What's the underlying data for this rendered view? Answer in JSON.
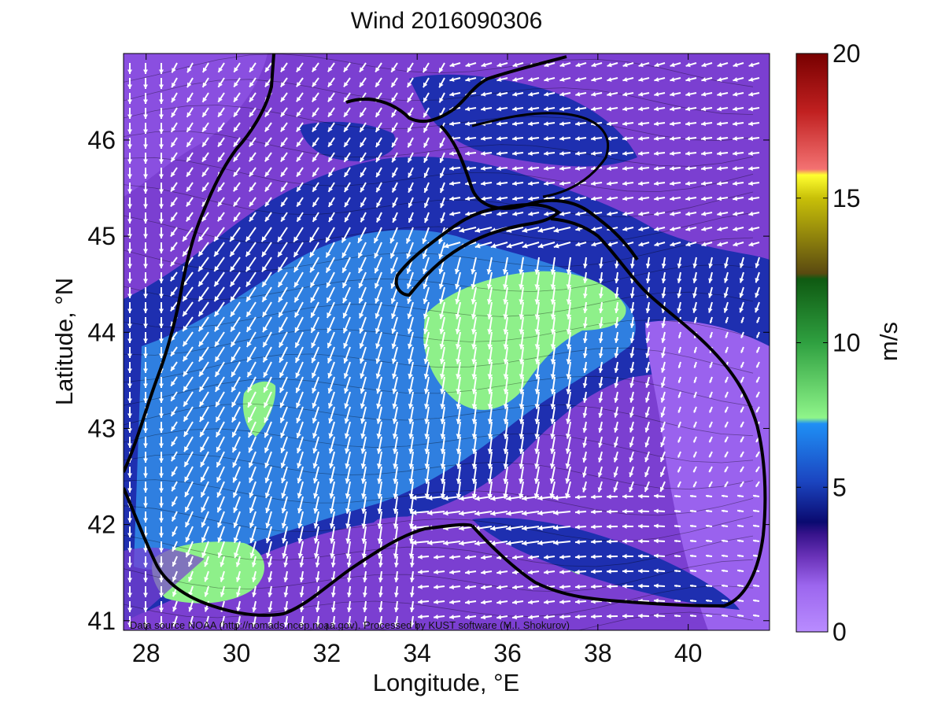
{
  "title": "Wind 2016090306",
  "map": {
    "xlabel": "Longitude, °E",
    "ylabel": "Latitude, °N",
    "lon_range": [
      27.5,
      41.8
    ],
    "lat_range": [
      40.9,
      46.9
    ],
    "x_ticks": [
      "28",
      "30",
      "32",
      "34",
      "36",
      "38",
      "40"
    ],
    "x_tick_values": [
      28,
      30,
      32,
      34,
      36,
      38,
      40
    ],
    "y_ticks": [
      "41",
      "42",
      "43",
      "44",
      "45",
      "46"
    ],
    "y_tick_values": [
      41,
      42,
      43,
      44,
      45,
      46
    ],
    "source_note": "Data source NOAA (http://nomads.ncep.noaa.gov). Processed by KUST software (M.I. Shokurov)"
  },
  "colorbar": {
    "label": "m/s",
    "range": [
      0,
      20
    ],
    "ticks": [
      "0",
      "5",
      "10",
      "15",
      "20"
    ],
    "tick_values": [
      0,
      5,
      10,
      15,
      20
    ]
  },
  "colors": {
    "calm": "#a878f5",
    "low": "#7b3fd1",
    "mid": "#1e2fb0",
    "blue": "#2f7fe0",
    "green": "#8ef08a",
    "arrow": "#ffffff",
    "coast": "#000000"
  }
}
